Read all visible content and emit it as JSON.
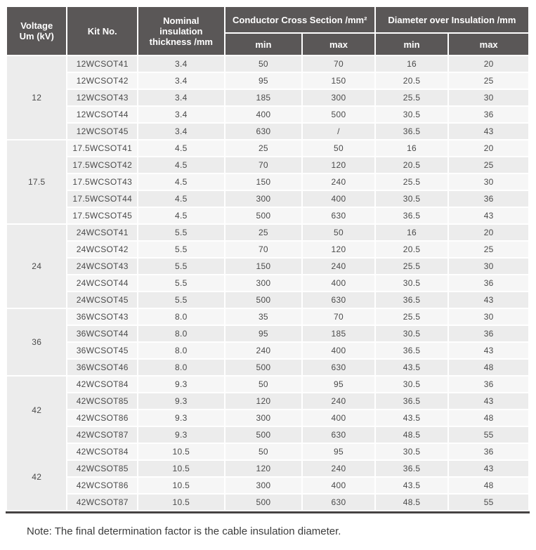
{
  "table": {
    "header": {
      "voltage": "Voltage\nUm (kV)",
      "kit_no": "Kit No.",
      "thickness": "Nominal insulation\nthickness /mm",
      "conductor_cross_section": "Conductor Cross Section /mm²",
      "diameter_over_insulation": "Diameter over Insulation /mm",
      "min": "min",
      "max": "max"
    },
    "groups": [
      {
        "voltage": "12",
        "rows": [
          [
            "12WCSOT41",
            "3.4",
            "50",
            "70",
            "16",
            "20"
          ],
          [
            "12WCSOT42",
            "3.4",
            "95",
            "150",
            "20.5",
            "25"
          ],
          [
            "12WCSOT43",
            "3.4",
            "185",
            "300",
            "25.5",
            "30"
          ],
          [
            "12WCSOT44",
            "3.4",
            "400",
            "500",
            "30.5",
            "36"
          ],
          [
            "12WCSOT45",
            "3.4",
            "630",
            "/",
            "36.5",
            "43"
          ]
        ]
      },
      {
        "voltage": "17.5",
        "rows": [
          [
            "17.5WCSOT41",
            "4.5",
            "25",
            "50",
            "16",
            "20"
          ],
          [
            "17.5WCSOT42",
            "4.5",
            "70",
            "120",
            "20.5",
            "25"
          ],
          [
            "17.5WCSOT43",
            "4.5",
            "150",
            "240",
            "25.5",
            "30"
          ],
          [
            "17.5WCSOT44",
            "4.5",
            "300",
            "400",
            "30.5",
            "36"
          ],
          [
            "17.5WCSOT45",
            "4.5",
            "500",
            "630",
            "36.5",
            "43"
          ]
        ]
      },
      {
        "voltage": "24",
        "rows": [
          [
            "24WCSOT41",
            "5.5",
            "25",
            "50",
            "16",
            "20"
          ],
          [
            "24WCSOT42",
            "5.5",
            "70",
            "120",
            "20.5",
            "25"
          ],
          [
            "24WCSOT43",
            "5.5",
            "150",
            "240",
            "25.5",
            "30"
          ],
          [
            "24WCSOT44",
            "5.5",
            "300",
            "400",
            "30.5",
            "36"
          ],
          [
            "24WCSOT45",
            "5.5",
            "500",
            "630",
            "36.5",
            "43"
          ]
        ]
      },
      {
        "voltage": "36",
        "rows": [
          [
            "36WCSOT43",
            "8.0",
            "35",
            "70",
            "25.5",
            "30"
          ],
          [
            "36WCSOT44",
            "8.0",
            "95",
            "185",
            "30.5",
            "36"
          ],
          [
            "36WCSOT45",
            "8.0",
            "240",
            "400",
            "36.5",
            "43"
          ],
          [
            "36WCSOT46",
            "8.0",
            "500",
            "630",
            "43.5",
            "48"
          ]
        ]
      },
      {
        "voltage": "42",
        "rows": [
          [
            "42WCSOT84",
            "9.3",
            "50",
            "95",
            "30.5",
            "36"
          ],
          [
            "42WCSOT85",
            "9.3",
            "120",
            "240",
            "36.5",
            "43"
          ],
          [
            "42WCSOT86",
            "9.3",
            "300",
            "400",
            "43.5",
            "48"
          ],
          [
            "42WCSOT87",
            "9.3",
            "500",
            "630",
            "48.5",
            "55"
          ]
        ]
      },
      {
        "voltage": "42",
        "rows": [
          [
            "42WCSOT84",
            "10.5",
            "50",
            "95",
            "30.5",
            "36"
          ],
          [
            "42WCSOT85",
            "10.5",
            "120",
            "240",
            "36.5",
            "43"
          ],
          [
            "42WCSOT86",
            "10.5",
            "300",
            "400",
            "43.5",
            "48"
          ],
          [
            "42WCSOT87",
            "10.5",
            "500",
            "630",
            "48.5",
            "55"
          ]
        ]
      }
    ]
  },
  "note": "Note: The final determination factor is the cable insulation diameter.",
  "colors": {
    "header_bg": "#5a5757",
    "header_text": "#ffffff",
    "row_shade_dark": "#ececec",
    "row_shade_light": "#f6f6f6",
    "data_text": "#4a4a4a",
    "bottom_border": "#454242"
  }
}
